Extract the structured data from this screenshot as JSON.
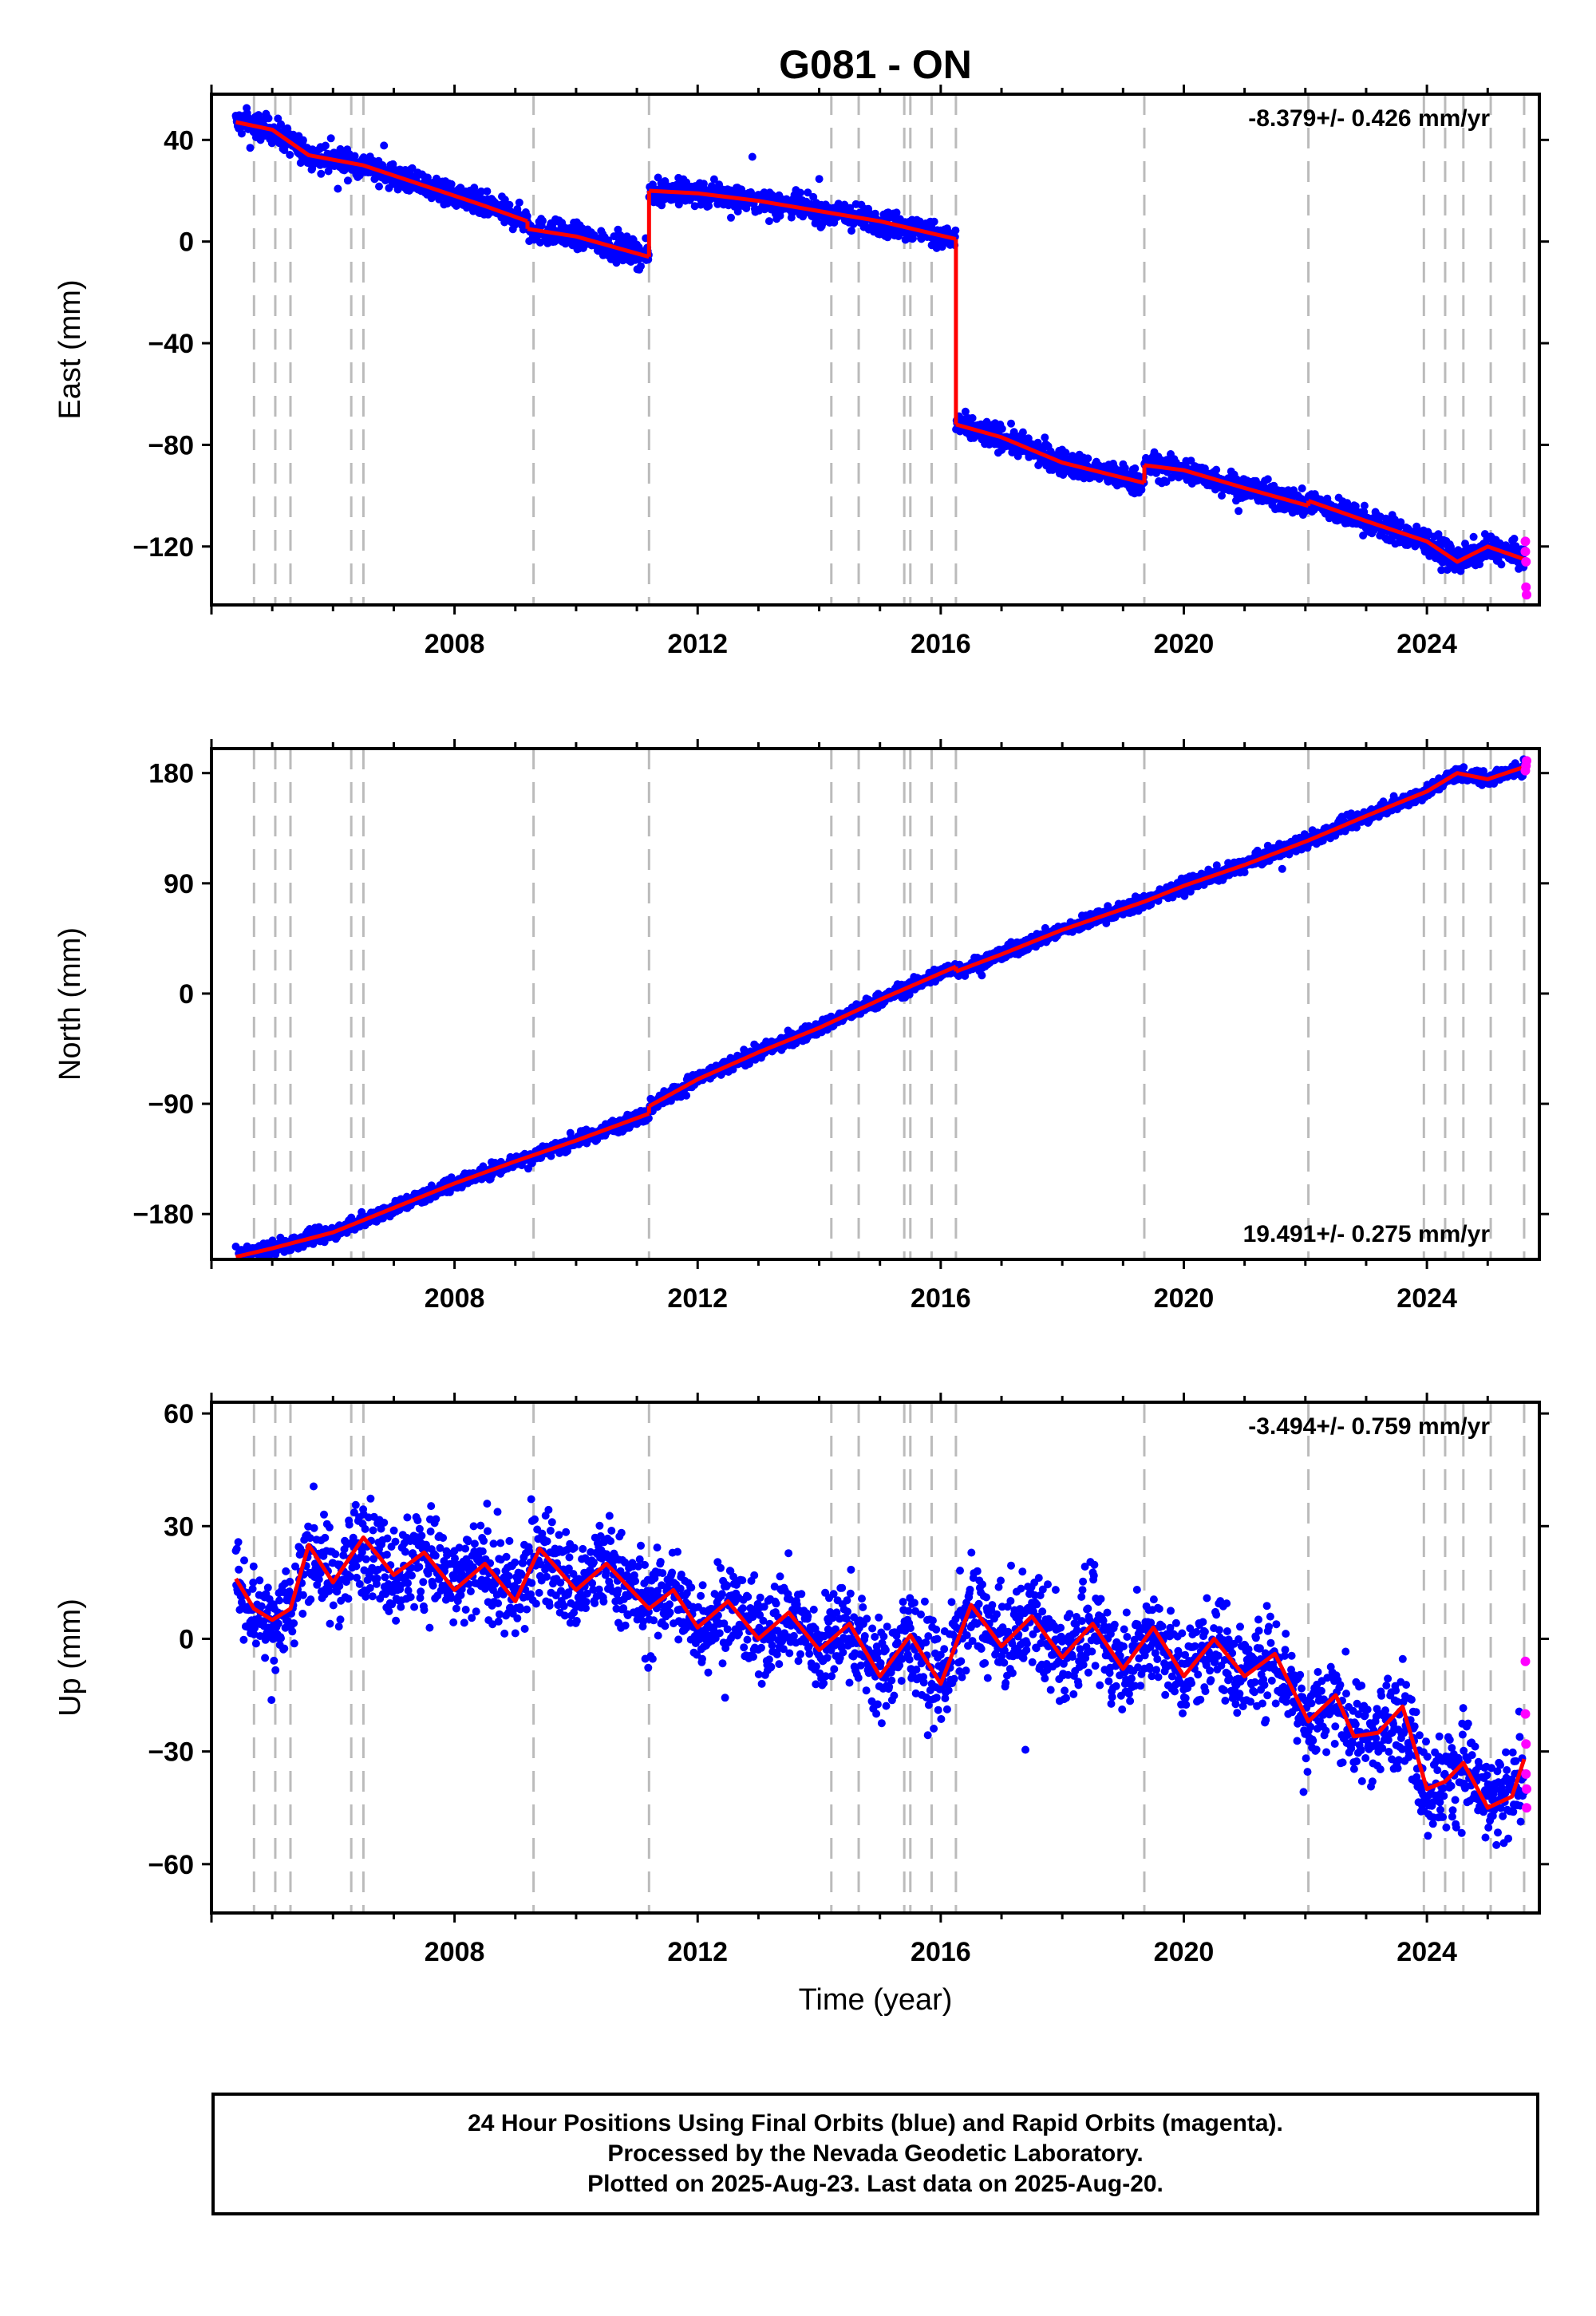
{
  "title": "G081 - ON",
  "x_axis_label": "Time (year)",
  "x_ticks": [
    "2008",
    "2012",
    "2016",
    "2020",
    "2024"
  ],
  "footer": {
    "line1": "24 Hour Positions Using Final Orbits (blue) and Rapid Orbits (magenta).",
    "line2": "Processed by the Nevada Geodetic Laboratory.",
    "line3": "Plotted on 2025-Aug-23. Last data on 2025-Aug-20."
  },
  "colors": {
    "final": "#0000ff",
    "rapid": "#ff00ff",
    "model": "#ff0000",
    "event_lines": "#bbbbbb"
  },
  "chart_data": [
    {
      "type": "scatter",
      "component": "East",
      "ylabel": "East (mm)",
      "rate_label": "-8.379+/- 0.426 mm/yr",
      "rate_position": "top-right",
      "xlim": [
        2004.0,
        2025.85
      ],
      "ylim": [
        -143,
        58
      ],
      "yticks": [
        40,
        0,
        -40,
        -80,
        -120
      ],
      "xticks": [
        2008,
        2012,
        2016,
        2020,
        2024
      ],
      "grid": false,
      "event_lines": [
        2004.7,
        2005.05,
        2005.3,
        2006.3,
        2006.5,
        2009.3,
        2011.2,
        2014.2,
        2014.65,
        2015.4,
        2015.5,
        2015.85,
        2016.25,
        2019.35,
        2022.05,
        2023.95,
        2024.3,
        2024.6,
        2025.05,
        2025.6
      ],
      "model_segments": [
        [
          [
            2004.4,
            47
          ],
          [
            2005.0,
            44
          ],
          [
            2005.6,
            34
          ],
          [
            2006.5,
            30
          ],
          [
            2007.5,
            22
          ],
          [
            2008.5,
            14
          ],
          [
            2009.2,
            8
          ]
        ],
        [
          [
            2009.2,
            5
          ],
          [
            2010.0,
            2
          ],
          [
            2011.2,
            -6
          ]
        ],
        [
          [
            2011.2,
            20
          ],
          [
            2012.0,
            19
          ],
          [
            2013.0,
            16
          ],
          [
            2014.0,
            12
          ],
          [
            2015.0,
            8
          ],
          [
            2016.25,
            1
          ]
        ],
        [
          [
            2016.25,
            -72
          ],
          [
            2017.0,
            -77
          ],
          [
            2018.0,
            -87
          ],
          [
            2019.35,
            -95
          ]
        ],
        [
          [
            2019.35,
            -88
          ],
          [
            2020.0,
            -90
          ],
          [
            2021.0,
            -97
          ],
          [
            2022.05,
            -104
          ]
        ],
        [
          [
            2022.05,
            -102
          ],
          [
            2023.0,
            -110
          ],
          [
            2024.0,
            -118
          ],
          [
            2024.5,
            -126
          ],
          [
            2025.0,
            -120
          ],
          [
            2025.6,
            -125
          ]
        ]
      ],
      "rapid_points": [
        [
          2025.62,
          -118
        ],
        [
          2025.62,
          -122
        ],
        [
          2025.63,
          -126
        ],
        [
          2025.63,
          -136
        ],
        [
          2025.64,
          -139
        ]
      ]
    },
    {
      "type": "scatter",
      "component": "North",
      "ylabel": "North (mm)",
      "rate_label": "19.491+/- 0.275 mm/yr",
      "rate_position": "bottom-right",
      "xlim": [
        2004.0,
        2025.85
      ],
      "ylim": [
        -217,
        200
      ],
      "yticks": [
        180,
        90,
        0,
        -90,
        -180
      ],
      "xticks": [
        2008,
        2012,
        2016,
        2020,
        2024
      ],
      "grid": false,
      "event_lines": [
        2004.7,
        2005.05,
        2005.3,
        2006.3,
        2006.5,
        2009.3,
        2011.2,
        2014.2,
        2014.65,
        2015.4,
        2015.5,
        2015.85,
        2016.25,
        2019.35,
        2022.05,
        2023.95,
        2024.3,
        2024.6,
        2025.05,
        2025.6
      ],
      "model_segments": [
        [
          [
            2004.4,
            -215
          ],
          [
            2005.0,
            -208
          ],
          [
            2006.0,
            -195
          ],
          [
            2007.0,
            -175
          ],
          [
            2008.0,
            -155
          ],
          [
            2009.0,
            -137
          ],
          [
            2010.0,
            -120
          ],
          [
            2011.2,
            -98
          ]
        ],
        [
          [
            2011.2,
            -92
          ],
          [
            2012.0,
            -70
          ],
          [
            2013.0,
            -48
          ],
          [
            2014.0,
            -28
          ],
          [
            2015.0,
            -5
          ],
          [
            2016.25,
            22
          ]
        ],
        [
          [
            2016.25,
            18
          ],
          [
            2017.0,
            32
          ],
          [
            2018.0,
            52
          ],
          [
            2019.35,
            75
          ],
          [
            2020.0,
            88
          ],
          [
            2021.0,
            105
          ],
          [
            2022.05,
            125
          ],
          [
            2023.0,
            145
          ],
          [
            2024.0,
            165
          ],
          [
            2024.5,
            180
          ],
          [
            2025.0,
            175
          ],
          [
            2025.6,
            185
          ]
        ]
      ],
      "rapid_points": [
        [
          2025.62,
          182
        ],
        [
          2025.63,
          186
        ],
        [
          2025.64,
          190
        ]
      ]
    },
    {
      "type": "scatter",
      "component": "Up",
      "ylabel": "Up (mm)",
      "rate_label": "-3.494+/- 0.759 mm/yr",
      "rate_position": "top-right",
      "xlim": [
        2004.0,
        2025.85
      ],
      "ylim": [
        -73,
        63
      ],
      "yticks": [
        60,
        30,
        0,
        -30,
        -60
      ],
      "xticks": [
        2008,
        2012,
        2016,
        2020,
        2024
      ],
      "grid": false,
      "event_lines": [
        2004.7,
        2005.05,
        2005.3,
        2006.3,
        2006.5,
        2009.3,
        2011.2,
        2014.2,
        2014.65,
        2015.4,
        2015.5,
        2015.85,
        2016.25,
        2019.35,
        2022.05,
        2023.95,
        2024.3,
        2024.6,
        2025.05,
        2025.6
      ],
      "model_segments": [
        [
          [
            2004.4,
            16
          ],
          [
            2004.7,
            8
          ],
          [
            2005.0,
            5
          ],
          [
            2005.3,
            8
          ],
          [
            2005.6,
            25
          ],
          [
            2006.0,
            15
          ],
          [
            2006.5,
            27
          ],
          [
            2007.0,
            17
          ],
          [
            2007.5,
            23
          ],
          [
            2008.0,
            13
          ],
          [
            2008.5,
            20
          ],
          [
            2009.0,
            10
          ],
          [
            2009.4,
            24
          ],
          [
            2010.0,
            13
          ],
          [
            2010.5,
            20
          ],
          [
            2011.2,
            8
          ],
          [
            2011.6,
            13
          ],
          [
            2012.0,
            3
          ],
          [
            2012.5,
            10
          ],
          [
            2013.0,
            0
          ],
          [
            2013.5,
            7
          ],
          [
            2014.0,
            -3
          ],
          [
            2014.5,
            4
          ],
          [
            2015.0,
            -10
          ],
          [
            2015.5,
            1
          ],
          [
            2016.0,
            -12
          ],
          [
            2016.5,
            9
          ],
          [
            2017.0,
            -2
          ],
          [
            2017.5,
            6
          ],
          [
            2018.0,
            -5
          ],
          [
            2018.5,
            4
          ],
          [
            2019.0,
            -8
          ],
          [
            2019.5,
            3
          ],
          [
            2020.0,
            -10
          ],
          [
            2020.5,
            0
          ],
          [
            2021.0,
            -10
          ],
          [
            2021.5,
            -4
          ],
          [
            2022.05,
            -22
          ],
          [
            2022.5,
            -15
          ],
          [
            2022.8,
            -26
          ],
          [
            2023.2,
            -25
          ],
          [
            2023.6,
            -18
          ],
          [
            2024.0,
            -40
          ],
          [
            2024.3,
            -38
          ],
          [
            2024.6,
            -33
          ],
          [
            2025.0,
            -45
          ],
          [
            2025.4,
            -42
          ],
          [
            2025.6,
            -32
          ]
        ]
      ],
      "rapid_points": [
        [
          2025.62,
          -6
        ],
        [
          2025.62,
          -20
        ],
        [
          2025.63,
          -28
        ],
        [
          2025.63,
          -36
        ],
        [
          2025.64,
          -40
        ],
        [
          2025.64,
          -45
        ]
      ]
    }
  ]
}
